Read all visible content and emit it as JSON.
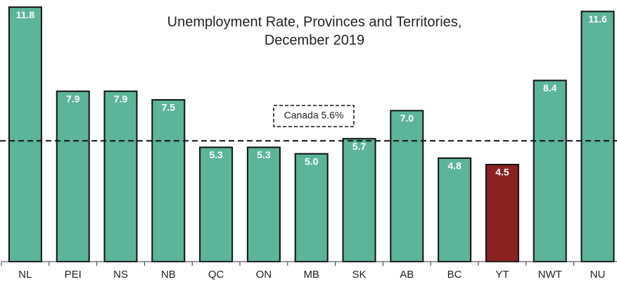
{
  "chart_data": {
    "type": "bar",
    "title": [
      "Unemployment Rate, Provinces and Territories,",
      "December 2019"
    ],
    "categories": [
      "NL",
      "PEI",
      "NS",
      "NB",
      "QC",
      "ON",
      "MB",
      "SK",
      "AB",
      "BC",
      "YT",
      "NWT",
      "NU"
    ],
    "values": [
      11.8,
      7.9,
      7.9,
      7.5,
      5.3,
      5.3,
      5.0,
      5.7,
      7.0,
      4.8,
      4.5,
      8.4,
      11.6
    ],
    "value_labels": [
      "11.8",
      "7.9",
      "7.9",
      "7.5",
      "5.3",
      "5.3",
      "5.0",
      "5.7",
      "7.0",
      "4.8",
      "4.5",
      "8.4",
      "11.6"
    ],
    "colors": [
      "#5cb49a",
      "#5cb49a",
      "#5cb49a",
      "#5cb49a",
      "#5cb49a",
      "#5cb49a",
      "#5cb49a",
      "#5cb49a",
      "#5cb49a",
      "#5cb49a",
      "#8b2222",
      "#5cb49a",
      "#5cb49a"
    ],
    "reference": {
      "value": 5.6,
      "label": "Canada 5.6%"
    },
    "ylim": [
      0,
      12
    ]
  }
}
